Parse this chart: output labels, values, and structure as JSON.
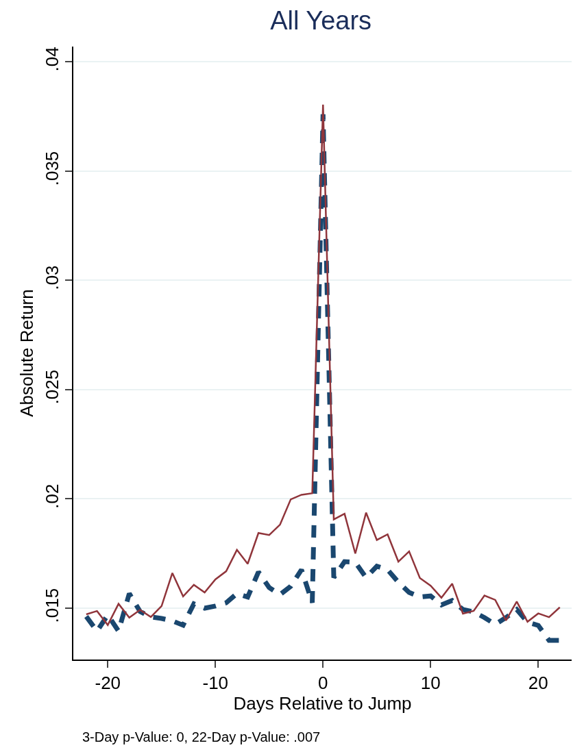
{
  "chart_data": {
    "type": "line",
    "title": "All Years",
    "xlabel": "Days Relative to Jump",
    "ylabel": "Absolute Return",
    "annotations": [
      "3-Day p-Value: 0, 22-Day p-Value: .007"
    ],
    "x": [
      -22,
      -21,
      -20,
      -19,
      -18,
      -17,
      -16,
      -15,
      -14,
      -13,
      -12,
      -11,
      -10,
      -9,
      -8,
      -7,
      -6,
      -5,
      -4,
      -3,
      -2,
      -1,
      0,
      1,
      2,
      3,
      4,
      5,
      6,
      7,
      8,
      9,
      10,
      11,
      12,
      13,
      14,
      15,
      16,
      17,
      18,
      19,
      20,
      21,
      22
    ],
    "series": [
      {
        "color": "#1a476f",
        "line_style": "dashed",
        "values": [
          0.01462,
          0.01395,
          0.01469,
          0.01395,
          0.01567,
          0.01485,
          0.0146,
          0.01453,
          0.01442,
          0.01422,
          0.0152,
          0.015,
          0.0151,
          0.01525,
          0.01567,
          0.01551,
          0.01666,
          0.01594,
          0.01562,
          0.016,
          0.01676,
          0.01525,
          0.0376,
          0.0164,
          0.01713,
          0.0171,
          0.0164,
          0.01692,
          0.01676,
          0.01619,
          0.01572,
          0.01551,
          0.01556,
          0.01515,
          0.01535,
          0.01494,
          0.01483,
          0.01457,
          0.01426,
          0.01457,
          0.01494,
          0.01436,
          0.01421,
          0.01353,
          0.01353
        ]
      },
      {
        "color": "#90353b",
        "line_style": "solid",
        "values": [
          0.01472,
          0.01487,
          0.01423,
          0.0152,
          0.01457,
          0.01492,
          0.0146,
          0.0151,
          0.01661,
          0.01554,
          0.01607,
          0.01572,
          0.01632,
          0.01669,
          0.01767,
          0.01703,
          0.01844,
          0.01835,
          0.01882,
          0.01998,
          0.02019,
          0.02026,
          0.03804,
          0.01906,
          0.01932,
          0.0175,
          0.01937,
          0.01812,
          0.01838,
          0.01713,
          0.0176,
          0.01638,
          0.01603,
          0.01548,
          0.01612,
          0.01475,
          0.01488,
          0.01558,
          0.01538,
          0.01444,
          0.0153,
          0.01438,
          0.01476,
          0.01459,
          0.01504
        ]
      }
    ],
    "xlim": [
      -23.2,
      23.1
    ],
    "xticks": [
      -20,
      -10,
      0,
      10,
      20
    ],
    "ylim": [
      0.01265,
      0.0407
    ],
    "yticks": [
      {
        "value": 0.015,
        "label": ".015"
      },
      {
        "value": 0.02,
        "label": ".02"
      },
      {
        "value": 0.025,
        "label": ".025"
      },
      {
        "value": 0.03,
        "label": ".03"
      },
      {
        "value": 0.035,
        "label": ".035"
      },
      {
        "value": 0.04,
        "label": ".04"
      }
    ],
    "grid": "y"
  }
}
